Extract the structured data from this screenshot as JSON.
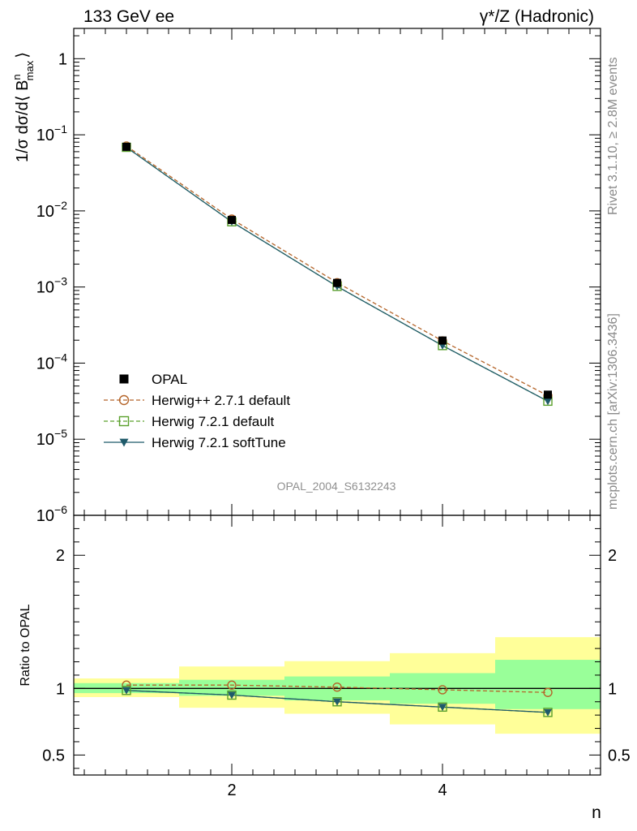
{
  "header": {
    "left": "133 GeV ee",
    "right": "γ*/Z (Hadronic)"
  },
  "side_texts": {
    "rivet": "Rivet 3.1.10, ≥ 2.8M events",
    "mcplots": "mcplots.cern.ch [arXiv:1306.3436]"
  },
  "chart_data": [
    {
      "panel": "main",
      "type": "line",
      "yscale": "log",
      "ylabel": "1/σ dσ/d⟨ B",
      "ylabel_sup": "n",
      "ylabel_sub": "max",
      "ylabel_close": "⟩",
      "xlim": [
        0.5,
        5.5
      ],
      "ylim": [
        1e-06,
        2.5
      ],
      "yticks": [
        {
          "value": 1,
          "base": "1",
          "exp": ""
        },
        {
          "value": 0.1,
          "base": "10",
          "exp": "−1"
        },
        {
          "value": 0.01,
          "base": "10",
          "exp": "−2"
        },
        {
          "value": 0.001,
          "base": "10",
          "exp": "−3"
        },
        {
          "value": 0.0001,
          "base": "10",
          "exp": "−4"
        },
        {
          "value": 1e-05,
          "base": "10",
          "exp": "−5"
        },
        {
          "value": 1e-06,
          "base": "10",
          "exp": "−6"
        }
      ],
      "x": [
        1,
        2,
        3,
        4,
        5
      ],
      "series": [
        {
          "name": "OPAL",
          "values": [
            0.0695,
            0.0076,
            0.00113,
            0.000198,
            3.85e-05
          ],
          "color": "#000000",
          "marker": "square-filled",
          "line": "none"
        },
        {
          "name": "Herwig++ 2.7.1 default",
          "values": [
            0.0712,
            0.0078,
            0.00114,
            0.000196,
            3.74e-05
          ],
          "color": "#b5652a",
          "marker": "circle-open",
          "line": "dashed"
        },
        {
          "name": "Herwig 7.2.1 default",
          "values": [
            0.0685,
            0.0072,
            0.00102,
            0.00017,
            3.16e-05
          ],
          "color": "#5aa02c",
          "marker": "square-open",
          "line": "dashed"
        },
        {
          "name": "Herwig 7.2.1 softTune",
          "values": [
            0.0685,
            0.0072,
            0.00102,
            0.00017,
            3.16e-05
          ],
          "color": "#1f5a6a",
          "marker": "triangle-down-filled",
          "line": "solid"
        }
      ],
      "watermark": "OPAL_2004_S6132243",
      "legend_position": "lower-left"
    },
    {
      "panel": "ratio",
      "type": "line",
      "ylabel": "Ratio to OPAL",
      "xlabel": "n",
      "xlim": [
        0.5,
        5.5
      ],
      "ylim": [
        0.35,
        2.3
      ],
      "yticks": [
        {
          "value": 0.5,
          "label": "0.5"
        },
        {
          "value": 1,
          "label": "1"
        },
        {
          "value": 2,
          "label": "2"
        }
      ],
      "xticks": [
        {
          "value": 2,
          "label": "2"
        },
        {
          "value": 4,
          "label": "4"
        }
      ],
      "x": [
        1,
        2,
        3,
        4,
        5
      ],
      "bins": [
        [
          0.5,
          1.5
        ],
        [
          1.5,
          2.5
        ],
        [
          2.5,
          3.5
        ],
        [
          3.5,
          4.5
        ],
        [
          4.5,
          5.5
        ]
      ],
      "band_inner": [
        [
          0.965,
          1.04
        ],
        [
          0.945,
          1.065
        ],
        [
          0.91,
          1.09
        ],
        [
          0.885,
          1.115
        ],
        [
          0.845,
          1.215
        ]
      ],
      "band_outer": [
        [
          0.935,
          1.075
        ],
        [
          0.855,
          1.165
        ],
        [
          0.81,
          1.205
        ],
        [
          0.73,
          1.265
        ],
        [
          0.66,
          1.385
        ]
      ],
      "band_inner_color": "#99ff99",
      "band_outer_color": "#ffff99",
      "series": [
        {
          "name": "Herwig++ 2.7.1 default",
          "values": [
            1.025,
            1.025,
            1.01,
            0.99,
            0.97
          ],
          "color": "#b5652a",
          "marker": "circle-open",
          "line": "dashed"
        },
        {
          "name": "Herwig 7.2.1 default",
          "values": [
            0.985,
            0.95,
            0.9,
            0.86,
            0.82
          ],
          "color": "#5aa02c",
          "marker": "square-open",
          "line": "dashed"
        },
        {
          "name": "Herwig 7.2.1 softTune",
          "values": [
            0.985,
            0.95,
            0.9,
            0.86,
            0.82
          ],
          "color": "#1f5a6a",
          "marker": "triangle-down-filled",
          "line": "solid"
        }
      ]
    }
  ]
}
